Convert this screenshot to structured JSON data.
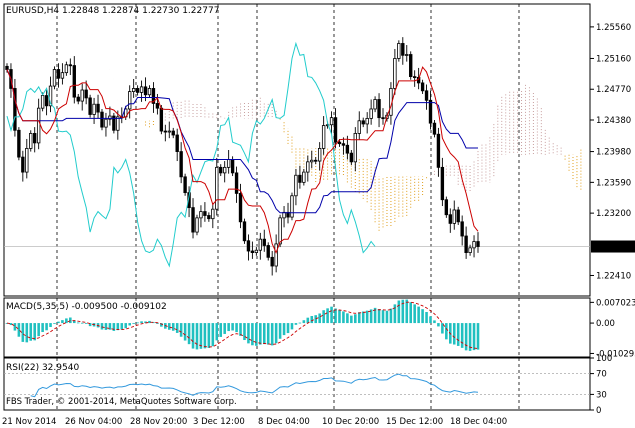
{
  "chart_data": [
    {
      "type": "candlestick",
      "panel": "price",
      "title": "EURUSD,H4  1.22848 1.22874 1.22730 1.22777",
      "ylim": [
        1.2215,
        1.2585
      ],
      "yticks": [
        "1.25560",
        "1.25160",
        "1.24770",
        "1.24380",
        "1.23980",
        "1.23590",
        "1.23200",
        "1.22410"
      ],
      "ytick_values": [
        1.2556,
        1.2516,
        1.2477,
        1.2438,
        1.2398,
        1.2359,
        1.232,
        1.2241
      ],
      "last_price_label": "1.22777",
      "last_price": 1.22777,
      "bar_count": 120,
      "closes": [
        1.2502,
        1.2478,
        1.2425,
        1.2391,
        1.2372,
        1.2402,
        1.2421,
        1.2409,
        1.2453,
        1.2469,
        1.2456,
        1.2481,
        1.2502,
        1.2491,
        1.2498,
        1.2508,
        1.2507,
        1.2467,
        1.2462,
        1.2476,
        1.2466,
        1.2445,
        1.2458,
        1.2448,
        1.2429,
        1.2439,
        1.2443,
        1.2425,
        1.2442,
        1.2442,
        1.2452,
        1.2474,
        1.2478,
        1.2473,
        1.248,
        1.247,
        1.2478,
        1.2459,
        1.2453,
        1.2424,
        1.2423,
        1.2424,
        1.2419,
        1.2398,
        1.2366,
        1.2346,
        1.2327,
        1.2296,
        1.2314,
        1.2322,
        1.2317,
        1.2313,
        1.2325,
        1.2378,
        1.2371,
        1.2378,
        1.2388,
        1.2371,
        1.2345,
        1.2309,
        1.2285,
        1.2272,
        1.227,
        1.2273,
        1.2287,
        1.2279,
        1.2264,
        1.2253,
        1.2281,
        1.2314,
        1.2321,
        1.2315,
        1.2342,
        1.2368,
        1.2359,
        1.2372,
        1.2385,
        1.2387,
        1.2386,
        1.2402,
        1.2431,
        1.2432,
        1.2441,
        1.241,
        1.2408,
        1.2406,
        1.2396,
        1.2385,
        1.2421,
        1.2437,
        1.2433,
        1.244,
        1.2452,
        1.2464,
        1.2441,
        1.244,
        1.2444,
        1.2478,
        1.2516,
        1.2535,
        1.252,
        1.2521,
        1.2493,
        1.2492,
        1.2485,
        1.2475,
        1.2463,
        1.2434,
        1.242,
        1.2378,
        1.2337,
        1.2318,
        1.2307,
        1.2324,
        1.2309,
        1.2291,
        1.227,
        1.2276,
        1.2284,
        1.22777
      ]
    },
    {
      "type": "histogram",
      "panel": "macd",
      "title": "MACD(5,35,5) -0.009500 -0.009102",
      "yticks": [
        "0.007023",
        "0.00",
        "-0.010295"
      ],
      "ytick_values": [
        0.007023,
        0.0,
        -0.010295
      ],
      "ylim": [
        -0.0115,
        0.0085
      ]
    },
    {
      "type": "line",
      "panel": "rsi",
      "title": "RSI(22) 32.9540",
      "yticks": [
        "100",
        "70",
        "30",
        "0"
      ],
      "ytick_values": [
        100,
        70,
        30,
        0
      ],
      "ylim": [
        0,
        100
      ]
    }
  ],
  "x_labels": [
    "21 Nov 2014",
    "26 Nov 04:00",
    "28 Nov 20:00",
    "3 Dec 12:00",
    "8 Dec 04:00",
    "10 Dec 20:00",
    "15 Dec 12:00",
    "18 Dec 04:00"
  ],
  "copyright": "FBS Trader, © 2001-2014, MetaQuotes Software Corp.",
  "colors": {
    "background": "#ffffff",
    "candle": "#000000",
    "tenkan": "#cc0000",
    "kijun": "#0000aa",
    "chikou": "#22cccc",
    "cloud_up": "#c8a0a0",
    "cloud_down": "#e0a020",
    "macd_hist": "#20c0c0",
    "macd_signal": "#cc0000",
    "rsi": "#3399dd"
  }
}
